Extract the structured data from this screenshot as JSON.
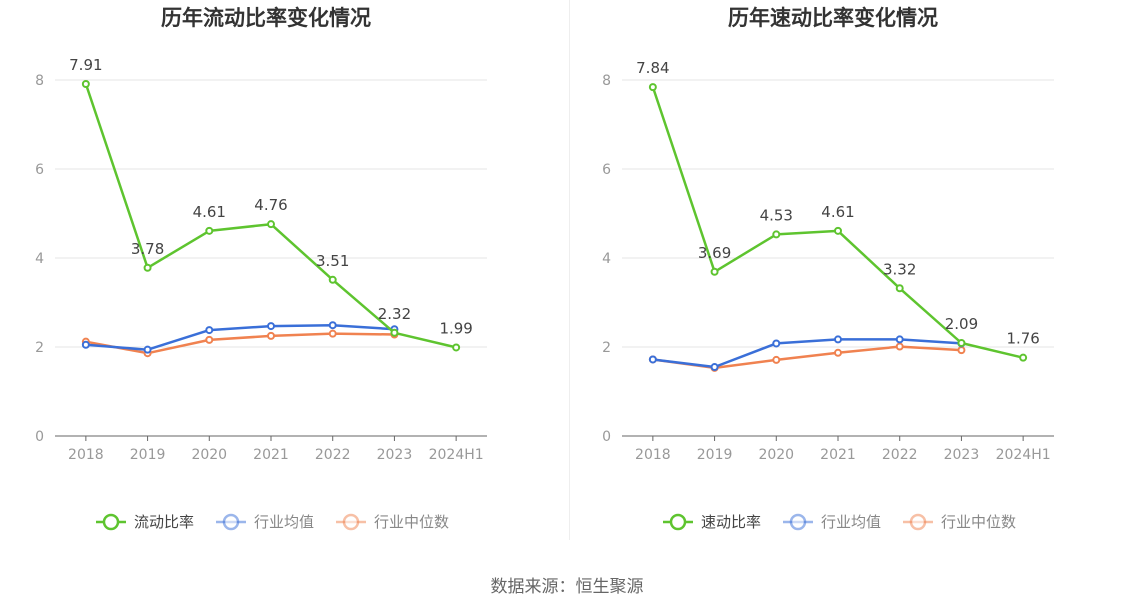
{
  "charts": [
    {
      "type": "line",
      "title": "历年流动比率变化情况",
      "categories": [
        "2018",
        "2019",
        "2020",
        "2021",
        "2022",
        "2023",
        "2024H1"
      ],
      "ylim": [
        0,
        8
      ],
      "yticks": [
        0,
        2,
        4,
        6,
        8
      ],
      "grid": true,
      "legend_position": "bottom",
      "series": [
        {
          "name": "流动比率",
          "color": "#5ec42f",
          "values": [
            7.91,
            3.78,
            4.61,
            4.76,
            3.51,
            2.32,
            1.99
          ],
          "labels": true
        },
        {
          "name": "行业均值",
          "color": "#3a6fd8",
          "values": [
            2.05,
            1.94,
            2.38,
            2.47,
            2.49,
            2.4,
            null
          ],
          "labels": false
        },
        {
          "name": "行业中位数",
          "color": "#f08250",
          "values": [
            2.12,
            1.86,
            2.16,
            2.25,
            2.3,
            2.28,
            null
          ],
          "labels": false
        }
      ]
    },
    {
      "type": "line",
      "title": "历年速动比率变化情况",
      "categories": [
        "2018",
        "2019",
        "2020",
        "2021",
        "2022",
        "2023",
        "2024H1"
      ],
      "ylim": [
        0,
        8
      ],
      "yticks": [
        0,
        2,
        4,
        6,
        8
      ],
      "grid": true,
      "legend_position": "bottom",
      "series": [
        {
          "name": "速动比率",
          "color": "#5ec42f",
          "values": [
            7.84,
            3.69,
            4.53,
            4.61,
            3.32,
            2.09,
            1.76
          ],
          "labels": true
        },
        {
          "name": "行业均值",
          "color": "#3a6fd8",
          "values": [
            1.72,
            1.55,
            2.08,
            2.17,
            2.17,
            2.08,
            null
          ],
          "labels": false
        },
        {
          "name": "行业中位数",
          "color": "#f08250",
          "values": [
            1.72,
            1.53,
            1.71,
            1.87,
            2.01,
            1.93,
            null
          ],
          "labels": false
        }
      ]
    }
  ],
  "source_text": "数据来源：恒生聚源"
}
